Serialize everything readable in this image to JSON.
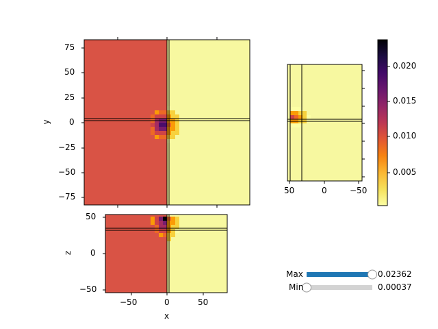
{
  "axes": {
    "xy": {
      "ylabel": "y",
      "yticks": [
        "75",
        "50",
        "25",
        "0",
        "−25",
        "−50",
        "−75"
      ]
    },
    "xz": {
      "xlabel": "x",
      "ylabel": "z",
      "xticks": [
        "−50",
        "0",
        "50"
      ],
      "yticks": [
        "50",
        "0",
        "−50"
      ]
    },
    "zy": {
      "xticks": [
        "50",
        "0",
        "−50"
      ]
    }
  },
  "colorbar": {
    "ticks": [
      "0.020",
      "0.015",
      "0.010",
      "0.005"
    ],
    "vmin": 0.00037,
    "vmax": 0.02362
  },
  "sliders": {
    "max": {
      "label": "Max",
      "value_text": "0.02362",
      "fraction": 1.0
    },
    "min": {
      "label": "Min",
      "value_text": "0.00037",
      "fraction": 0.0
    }
  },
  "colors": {
    "slider_fill": "#1f77b4",
    "slider_track": "#d3d3d3",
    "bg_dark": "#d95345",
    "bg_light": "#f7f8a0"
  }
}
